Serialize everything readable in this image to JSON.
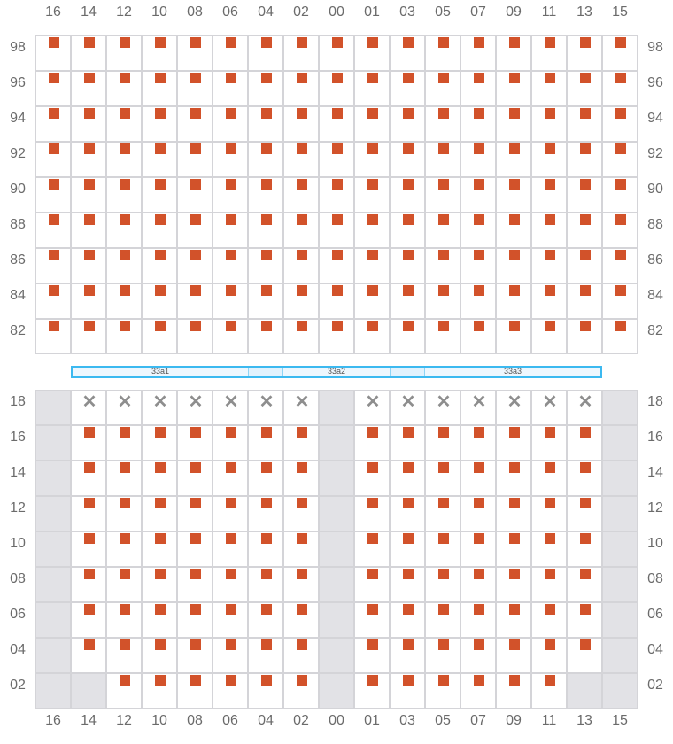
{
  "columns": [
    "16",
    "14",
    "12",
    "10",
    "08",
    "06",
    "04",
    "02",
    "00",
    "01",
    "03",
    "05",
    "07",
    "09",
    "11",
    "13",
    "15"
  ],
  "colors": {
    "occupied": "#d2522a",
    "disabled": "#e2e2e6",
    "grid": "#d4d4d8",
    "bar_border": "#3cb9f0"
  },
  "legend_states": {
    "s": "occupied-square",
    "x": "blocked-x",
    "g": "disabled",
    "e": "empty"
  },
  "top_section": {
    "rows": [
      {
        "label": "98",
        "cells": "sssssssssssssssss"
      },
      {
        "label": "96",
        "cells": "sssssssssssssssss"
      },
      {
        "label": "94",
        "cells": "sssssssssssssssss"
      },
      {
        "label": "92",
        "cells": "sssssssssssssssss"
      },
      {
        "label": "90",
        "cells": "sssssssssssssssss"
      },
      {
        "label": "88",
        "cells": "sssssssssssssssss"
      },
      {
        "label": "86",
        "cells": "sssssssssssssssss"
      },
      {
        "label": "84",
        "cells": "sssssssssssssssss"
      },
      {
        "label": "82",
        "cells": "sssssssssssssssss"
      }
    ]
  },
  "bar_segments": [
    {
      "label": "33a1"
    },
    {
      "label": "33a2"
    },
    {
      "label": "33a3"
    }
  ],
  "bottom_section": {
    "rows": [
      {
        "label": "18",
        "cells": "gxxxxxxxgxxxxxxxg"
      },
      {
        "label": "16",
        "cells": "gsssssssgsssssssg"
      },
      {
        "label": "14",
        "cells": "gsssssssgsssssssg"
      },
      {
        "label": "12",
        "cells": "gsssssssgsssssssg"
      },
      {
        "label": "10",
        "cells": "gsssssssgsssssssg"
      },
      {
        "label": "08",
        "cells": "gsssssssgsssssssg"
      },
      {
        "label": "06",
        "cells": "gsssssssgsssssssg"
      },
      {
        "label": "04",
        "cells": "gsssssssgsssssssg"
      },
      {
        "label": "02",
        "cells": "ggssssssgssssssgg"
      }
    ]
  },
  "x_glyph": "✕"
}
